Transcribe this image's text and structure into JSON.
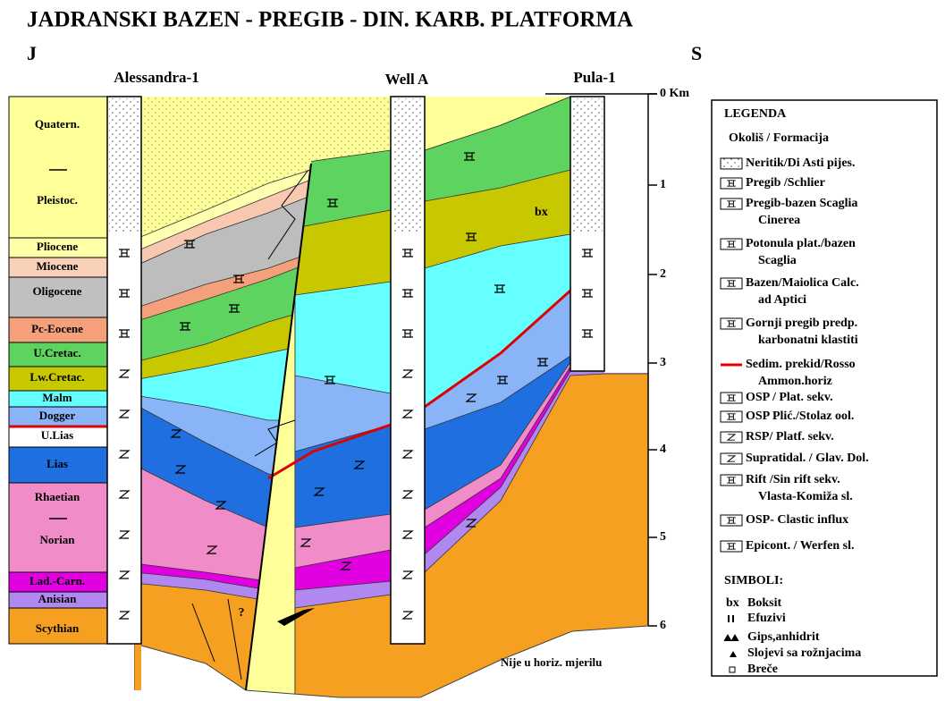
{
  "header": {
    "title": "JADRANSKI BAZEN - PREGIB - DIN. KARB. PLATFORMA",
    "left_direction": "J",
    "right_direction": "S"
  },
  "wells": [
    "Alessandra-1",
    "Well A",
    "Pula-1"
  ],
  "depth_scale": [
    "0 Km",
    "1",
    "2",
    "3",
    "4",
    "5",
    "6"
  ],
  "stratigraphy": [
    "Quatern.",
    "Pleistoc.",
    "Pliocene",
    "Miocene",
    "Oligocene",
    "Pc-Eocene",
    "U.Cretac.",
    "Lw.Cretac.",
    "Malm",
    "Dogger",
    "U.Lias",
    "Lias",
    "Rhaetian",
    "Norian",
    "Lad.-Carn.",
    "Anisian",
    "Scythian"
  ],
  "section_labels": {
    "bauxite": "bx",
    "question": "?",
    "scale_note": "Nije u horiz. mjerilu"
  },
  "legend": {
    "title": "LEGENDA",
    "subtitle": "Okoliš / Formacija",
    "items": [
      [
        "Neritik/Di Asti pijes."
      ],
      [
        "Pregib /Schlier"
      ],
      [
        "Pregib-bazen Scaglia",
        "Cinerea"
      ],
      [
        "Potonula plat./bazen",
        "Scaglia"
      ],
      [
        "Bazen/Maiolica Calc.",
        "ad Aptici"
      ],
      [
        "Gornji pregib predp.",
        "karbonatni klastiti"
      ],
      [
        "Sedim. prekid/Rosso",
        "Ammon.horiz"
      ],
      [
        "OSP / Plat. sekv."
      ],
      [
        "OSP Plić./Stolaz ool."
      ],
      [
        "RSP/ Platf. sekv."
      ],
      [
        "Supratidal. / Glav. Dol."
      ],
      [
        "Rift /Sin rift sekv.",
        "Vlasta-Komiža sl."
      ],
      [
        "OSP- Clastic influx"
      ],
      [
        "Epicont. / Werfen sl."
      ]
    ],
    "symbols_title": "SIMBOLI:",
    "symbols": [
      {
        "mark": "bx",
        "label": "Boksit"
      },
      {
        "label": "Efuzivi"
      },
      {
        "label": "Gips,anhidrit"
      },
      {
        "label": "Slojevi sa rožnjacima"
      },
      {
        "label": "Breče"
      }
    ]
  }
}
